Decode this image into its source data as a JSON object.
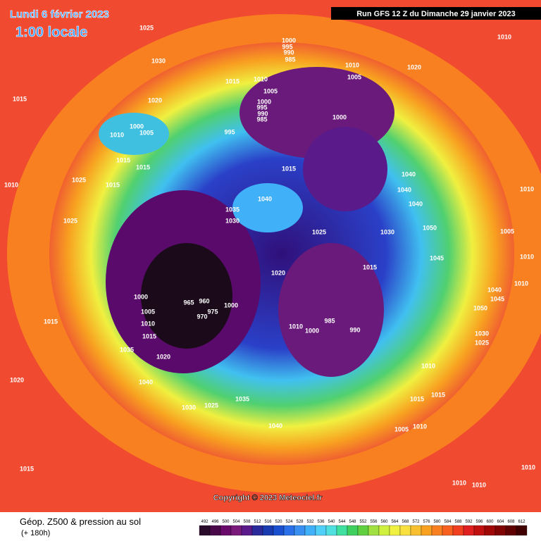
{
  "header": {
    "date": "Lundi 6 février 2023",
    "time": "1:00 locale",
    "run": "Run GFS 12 Z du Dimanche 29 janvier 2023"
  },
  "copyright": "Copyright © 2023 Meteociel.fr",
  "footer": {
    "title": "Géop. Z500 & pression au sol",
    "lead": "(+ 180h)"
  },
  "scale": {
    "labels": [
      "492",
      "496",
      "500",
      "504",
      "508",
      "512",
      "516",
      "520",
      "524",
      "528",
      "532",
      "536",
      "540",
      "544",
      "548",
      "552",
      "556",
      "560",
      "564",
      "568",
      "572",
      "576",
      "580",
      "584",
      "588",
      "592",
      "596",
      "600",
      "604",
      "608",
      "612"
    ],
    "colors": [
      "#2a0a2a",
      "#4a0a4a",
      "#6a0a6a",
      "#7a1a7a",
      "#5a1a8a",
      "#2a2a9a",
      "#1a3ab0",
      "#1a50d0",
      "#2a70e8",
      "#3a90f0",
      "#40b0f8",
      "#50d0f8",
      "#50e0e0",
      "#40e0a0",
      "#40d060",
      "#60d040",
      "#a0e040",
      "#d0f040",
      "#f0f040",
      "#f8e040",
      "#f8c030",
      "#f8a020",
      "#f88020",
      "#f86020",
      "#f04020",
      "#e02020",
      "#c01010",
      "#a00808",
      "#800404",
      "#600202",
      "#400000"
    ]
  },
  "isobars": [
    "1025",
    "1030",
    "1015",
    "1020",
    "1015",
    "1010",
    "1000",
    "995",
    "990",
    "985",
    "1005",
    "1000",
    "995",
    "990",
    "985",
    "1000",
    "995",
    "1010",
    "1005",
    "1020",
    "1010",
    "1000",
    "1005",
    "1010",
    "1015",
    "1015",
    "1015",
    "1040",
    "1040",
    "1040",
    "1025",
    "1015",
    "1010",
    "1010",
    "1040",
    "1035",
    "1030",
    "1025",
    "1030",
    "1025",
    "1050",
    "1005",
    "1020",
    "1015",
    "1045",
    "1010",
    "1000",
    "965",
    "960",
    "975",
    "1000",
    "970",
    "1005",
    "1010",
    "1015",
    "985",
    "990",
    "1010",
    "1000",
    "1040",
    "1045",
    "1050",
    "1010",
    "1015",
    "1030",
    "1025",
    "1035",
    "1020",
    "1010",
    "1040",
    "1020",
    "1015",
    "1015",
    "1030",
    "1025",
    "1035",
    "1040",
    "1005",
    "1010",
    "1015",
    "1010",
    "1010",
    "1010"
  ]
}
